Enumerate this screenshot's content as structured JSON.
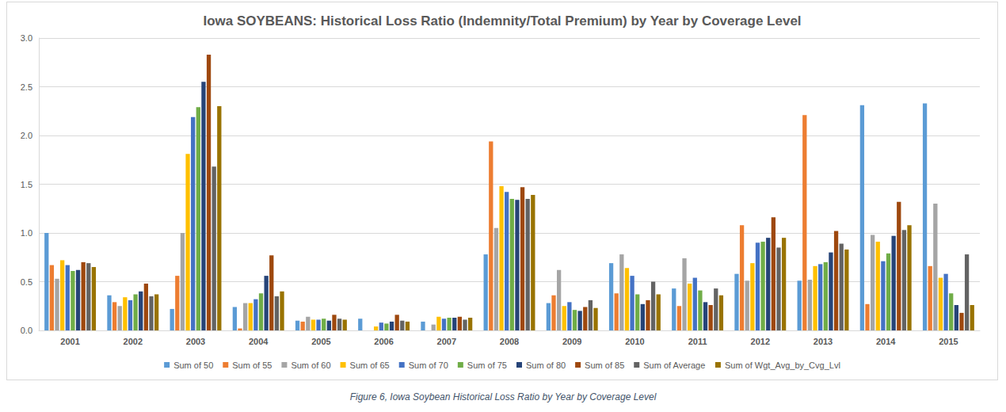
{
  "chart_data": {
    "type": "bar",
    "title": "Iowa SOYBEANS: Historical Loss Ratio (Indemnity/Total Premium) by Year by Coverage Level",
    "caption": "Figure 6, Iowa Soybean Historical Loss Ratio by Year by Coverage Level",
    "categories": [
      "2001",
      "2002",
      "2003",
      "2004",
      "2005",
      "2006",
      "2007",
      "2008",
      "2009",
      "2010",
      "2011",
      "2012",
      "2013",
      "2014",
      "2015"
    ],
    "series": [
      {
        "name": "Sum of 50",
        "color": "#5b9bd5",
        "values": [
          1.0,
          0.36,
          0.22,
          0.24,
          0.1,
          0.12,
          0.09,
          0.78,
          0.28,
          0.69,
          0.43,
          0.58,
          0.51,
          2.31,
          2.33
        ]
      },
      {
        "name": "Sum of 55",
        "color": "#ed7d31",
        "values": [
          0.67,
          0.29,
          0.56,
          0.02,
          0.09,
          null,
          null,
          1.94,
          0.36,
          0.38,
          0.25,
          1.08,
          2.21,
          0.27,
          0.66
        ]
      },
      {
        "name": "Sum of 60",
        "color": "#a5a5a5",
        "values": [
          0.53,
          0.25,
          1.0,
          0.28,
          0.14,
          null,
          0.06,
          1.05,
          0.62,
          0.78,
          0.74,
          0.51,
          0.52,
          0.98,
          1.3
        ]
      },
      {
        "name": "Sum of 65",
        "color": "#ffc000",
        "values": [
          0.72,
          0.34,
          1.81,
          0.28,
          0.11,
          0.04,
          0.14,
          1.48,
          0.25,
          0.64,
          0.48,
          0.69,
          0.66,
          0.91,
          0.54
        ]
      },
      {
        "name": "Sum of 70",
        "color": "#4472c4",
        "values": [
          0.67,
          0.31,
          2.19,
          0.32,
          0.11,
          0.08,
          0.12,
          1.42,
          0.29,
          0.56,
          0.54,
          0.9,
          0.68,
          0.71,
          0.58
        ]
      },
      {
        "name": "Sum of 75",
        "color": "#70ad47",
        "values": [
          0.61,
          0.37,
          2.29,
          0.38,
          0.12,
          0.07,
          0.13,
          1.35,
          0.21,
          0.37,
          0.41,
          0.91,
          0.7,
          0.79,
          0.38
        ]
      },
      {
        "name": "Sum of 80",
        "color": "#264478",
        "values": [
          0.62,
          0.4,
          2.55,
          0.56,
          0.1,
          0.09,
          0.13,
          1.34,
          0.2,
          0.27,
          0.29,
          0.95,
          0.8,
          0.97,
          0.26
        ]
      },
      {
        "name": "Sum of 85",
        "color": "#9e480e",
        "values": [
          0.7,
          0.48,
          2.83,
          0.77,
          0.16,
          0.16,
          0.14,
          1.47,
          0.24,
          0.31,
          0.26,
          1.16,
          1.02,
          1.32,
          0.18
        ]
      },
      {
        "name": "Sum of Average",
        "color": "#636363",
        "values": [
          0.69,
          0.35,
          1.68,
          0.35,
          0.12,
          0.1,
          0.11,
          1.35,
          0.31,
          0.5,
          0.43,
          0.85,
          0.89,
          1.03,
          0.78
        ]
      },
      {
        "name": "Sum of Wgt_Avg_by_Cvg_Lvl",
        "color": "#997300",
        "values": [
          0.65,
          0.37,
          2.3,
          0.4,
          0.11,
          0.09,
          0.13,
          1.39,
          0.23,
          0.37,
          0.36,
          0.95,
          0.83,
          1.08,
          0.26
        ]
      }
    ],
    "ylim": [
      0,
      3
    ],
    "yticks": [
      {
        "value": 0,
        "label": "0.0"
      },
      0.5,
      {
        "value": 1,
        "label": "1.0"
      },
      1.5,
      {
        "value": 2,
        "label": "2.0"
      },
      2.5,
      {
        "value": 3,
        "label": "3.0"
      }
    ],
    "grid": true,
    "legend": "bottom"
  }
}
